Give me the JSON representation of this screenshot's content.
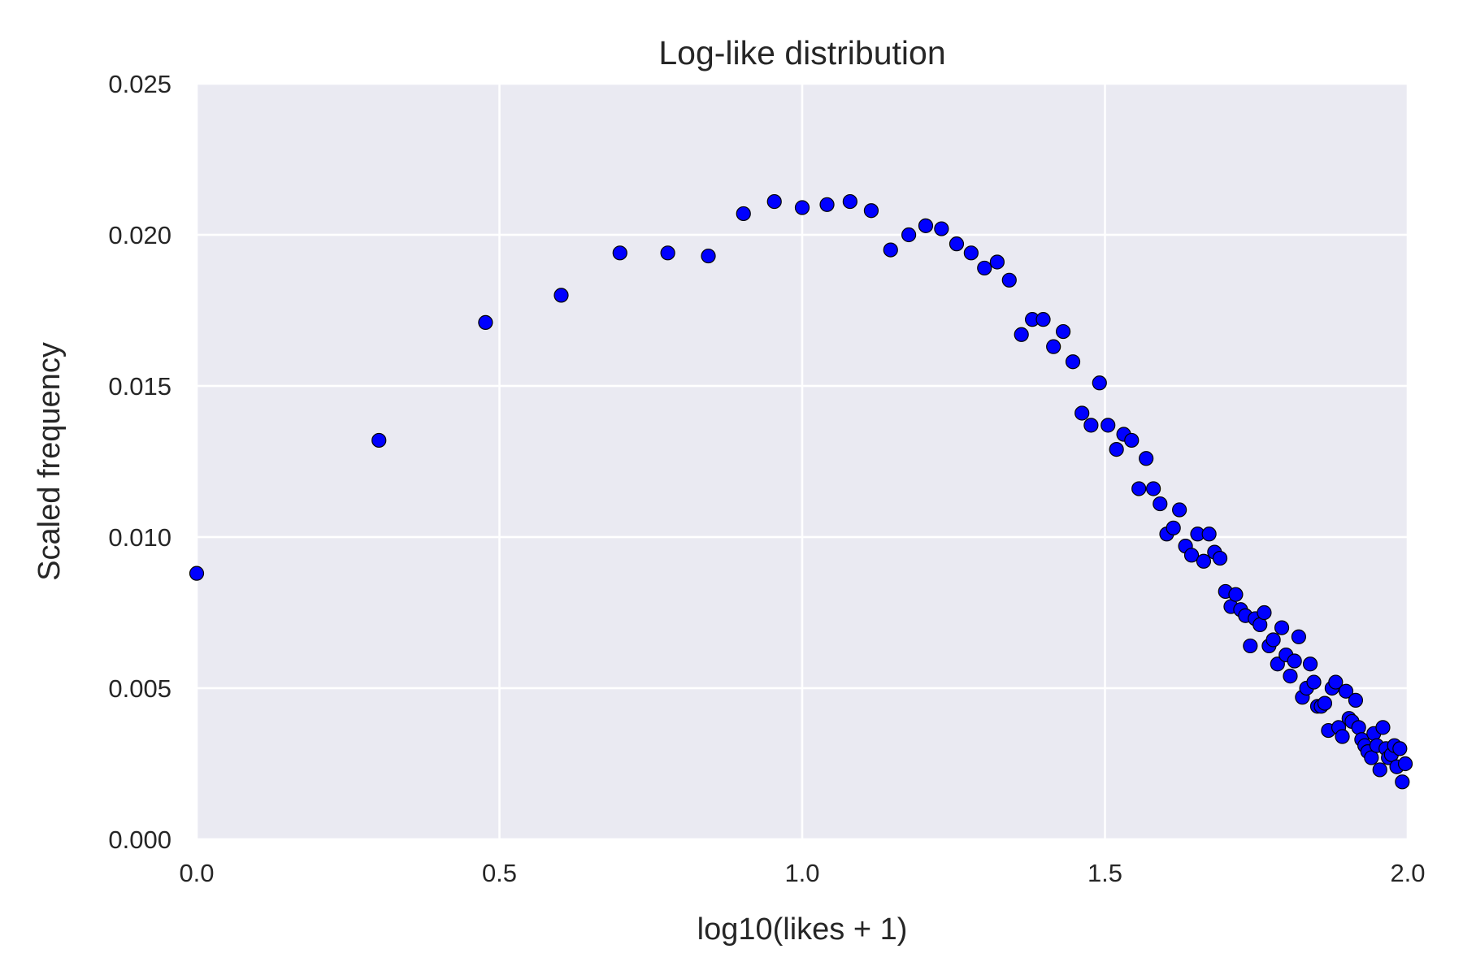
{
  "chart_data": {
    "type": "scatter",
    "title": "Log-like distribution",
    "xlabel": "log10(likes + 1)",
    "ylabel": "Scaled frequency",
    "xlim": [
      0.0,
      2.0
    ],
    "ylim": [
      0.0,
      0.025
    ],
    "x_ticks": [
      "0.0",
      "0.5",
      "1.0",
      "1.5",
      "2.0"
    ],
    "y_ticks": [
      "0.000",
      "0.005",
      "0.010",
      "0.015",
      "0.020",
      "0.025"
    ],
    "grid": true,
    "legend": "none",
    "colors": {
      "background": "#eaeaf2",
      "grid": "#ffffff",
      "marker_fill": "#0000ff",
      "marker_edge": "#000000",
      "text": "#262626"
    },
    "series": [
      {
        "points": [
          [
            0.0,
            0.0088
          ],
          [
            0.301,
            0.0132
          ],
          [
            0.477,
            0.0171
          ],
          [
            0.602,
            0.018
          ],
          [
            0.699,
            0.0194
          ],
          [
            0.778,
            0.0194
          ],
          [
            0.845,
            0.0193
          ],
          [
            0.903,
            0.0207
          ],
          [
            0.954,
            0.0211
          ],
          [
            1.0,
            0.0209
          ],
          [
            1.041,
            0.021
          ],
          [
            1.079,
            0.0211
          ],
          [
            1.114,
            0.0208
          ],
          [
            1.146,
            0.0195
          ],
          [
            1.176,
            0.02
          ],
          [
            1.204,
            0.0203
          ],
          [
            1.23,
            0.0202
          ],
          [
            1.255,
            0.0197
          ],
          [
            1.279,
            0.0194
          ],
          [
            1.301,
            0.0189
          ],
          [
            1.322,
            0.0191
          ],
          [
            1.342,
            0.0185
          ],
          [
            1.362,
            0.0167
          ],
          [
            1.38,
            0.0172
          ],
          [
            1.398,
            0.0172
          ],
          [
            1.415,
            0.0163
          ],
          [
            1.431,
            0.0168
          ],
          [
            1.447,
            0.0158
          ],
          [
            1.462,
            0.0141
          ],
          [
            1.477,
            0.0137
          ],
          [
            1.491,
            0.0151
          ],
          [
            1.505,
            0.0137
          ],
          [
            1.519,
            0.0129
          ],
          [
            1.531,
            0.0134
          ],
          [
            1.544,
            0.0132
          ],
          [
            1.556,
            0.0116
          ],
          [
            1.568,
            0.0126
          ],
          [
            1.58,
            0.0116
          ],
          [
            1.591,
            0.0111
          ],
          [
            1.602,
            0.0101
          ],
          [
            1.613,
            0.0103
          ],
          [
            1.623,
            0.0109
          ],
          [
            1.633,
            0.0097
          ],
          [
            1.643,
            0.0094
          ],
          [
            1.653,
            0.0101
          ],
          [
            1.663,
            0.0092
          ],
          [
            1.672,
            0.0101
          ],
          [
            1.681,
            0.0095
          ],
          [
            1.69,
            0.0093
          ],
          [
            1.699,
            0.0082
          ],
          [
            1.708,
            0.0077
          ],
          [
            1.716,
            0.0081
          ],
          [
            1.724,
            0.0076
          ],
          [
            1.732,
            0.0074
          ],
          [
            1.74,
            0.0064
          ],
          [
            1.748,
            0.0073
          ],
          [
            1.756,
            0.0071
          ],
          [
            1.763,
            0.0075
          ],
          [
            1.771,
            0.0064
          ],
          [
            1.778,
            0.0066
          ],
          [
            1.785,
            0.0058
          ],
          [
            1.792,
            0.007
          ],
          [
            1.799,
            0.0061
          ],
          [
            1.806,
            0.0054
          ],
          [
            1.813,
            0.0059
          ],
          [
            1.82,
            0.0067
          ],
          [
            1.826,
            0.0047
          ],
          [
            1.833,
            0.005
          ],
          [
            1.839,
            0.0058
          ],
          [
            1.845,
            0.0052
          ],
          [
            1.851,
            0.0044
          ],
          [
            1.857,
            0.0044
          ],
          [
            1.863,
            0.0045
          ],
          [
            1.869,
            0.0036
          ],
          [
            1.875,
            0.005
          ],
          [
            1.881,
            0.0052
          ],
          [
            1.886,
            0.0037
          ],
          [
            1.892,
            0.0034
          ],
          [
            1.898,
            0.0049
          ],
          [
            1.903,
            0.004
          ],
          [
            1.908,
            0.0039
          ],
          [
            1.914,
            0.0046
          ],
          [
            1.919,
            0.0037
          ],
          [
            1.924,
            0.0033
          ],
          [
            1.929,
            0.0031
          ],
          [
            1.934,
            0.0029
          ],
          [
            1.94,
            0.0027
          ],
          [
            1.944,
            0.0035
          ],
          [
            1.949,
            0.0031
          ],
          [
            1.954,
            0.0023
          ],
          [
            1.959,
            0.0037
          ],
          [
            1.964,
            0.003
          ],
          [
            1.968,
            0.0027
          ],
          [
            1.973,
            0.0028
          ],
          [
            1.978,
            0.0031
          ],
          [
            1.982,
            0.0024
          ],
          [
            1.987,
            0.003
          ],
          [
            1.991,
            0.0019
          ],
          [
            1.996,
            0.0025
          ]
        ]
      }
    ]
  }
}
